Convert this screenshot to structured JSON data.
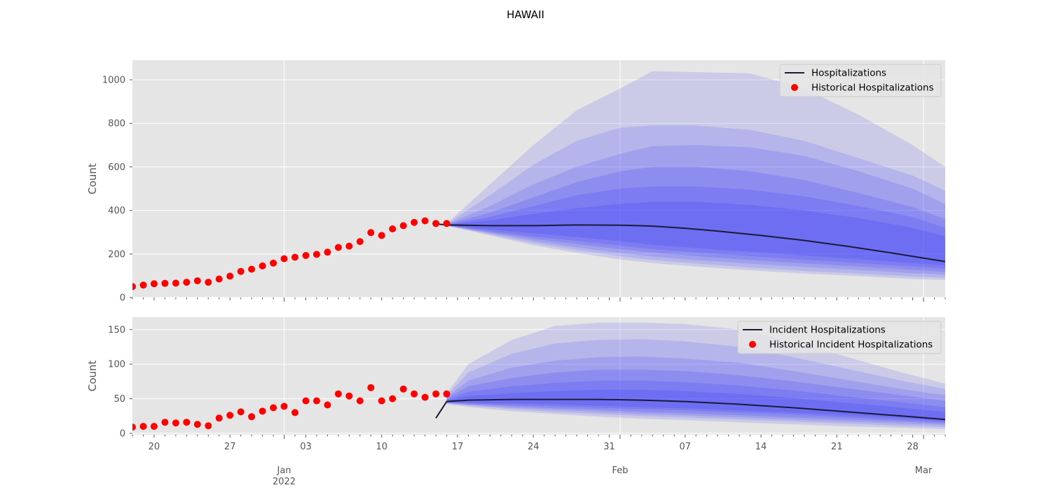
{
  "title": "HAWAII",
  "colors": {
    "panel_bg": "#e5e5e5",
    "grid": "#ffffff",
    "band": "#2222ff",
    "median": "#1a1a3a",
    "historical": "#ff0000",
    "tick": "#555555"
  },
  "x_axis": {
    "range": [
      "2021-12-18",
      "2022-03-03"
    ],
    "day_ticks": [
      {
        "date": "2021-12-20",
        "label": "20"
      },
      {
        "date": "2021-12-27",
        "label": "27"
      },
      {
        "date": "2022-01-03",
        "label": "03"
      },
      {
        "date": "2022-01-10",
        "label": "10"
      },
      {
        "date": "2022-01-17",
        "label": "17"
      },
      {
        "date": "2022-01-24",
        "label": "24"
      },
      {
        "date": "2022-01-31",
        "label": "31"
      },
      {
        "date": "2022-02-07",
        "label": "07"
      },
      {
        "date": "2022-02-14",
        "label": "14"
      },
      {
        "date": "2022-02-21",
        "label": "21"
      },
      {
        "date": "2022-02-28",
        "label": "28"
      }
    ],
    "month_ticks": [
      {
        "date": "2022-01-01",
        "label": "Jan",
        "sublabel": "2022"
      },
      {
        "date": "2022-02-01",
        "label": "Feb",
        "sublabel": ""
      },
      {
        "date": "2022-03-01",
        "label": "Mar",
        "sublabel": ""
      }
    ]
  },
  "chart_data": [
    {
      "type": "line",
      "panel": "top",
      "title": "",
      "xlabel": "",
      "ylabel": "Count",
      "ylim": [
        0,
        1090
      ],
      "yticks": [
        0,
        200,
        400,
        600,
        800,
        1000
      ],
      "grid": true,
      "legend": "top-right",
      "legend_entries": [
        {
          "kind": "line",
          "label": "Hospitalizations"
        },
        {
          "kind": "marker",
          "label": "Historical Hospitalizations"
        }
      ],
      "historical": {
        "name": "Historical Hospitalizations",
        "start_date": "2021-12-18",
        "values": [
          50,
          57,
          63,
          65,
          66,
          70,
          77,
          70,
          85,
          98,
          120,
          130,
          145,
          158,
          178,
          185,
          193,
          198,
          208,
          230,
          236,
          257,
          298,
          285,
          315,
          330,
          345,
          352,
          340,
          340
        ]
      },
      "median": {
        "name": "Hospitalizations",
        "x": [
          "2022-01-15",
          "2022-01-16",
          "2022-01-20",
          "2022-01-24",
          "2022-01-28",
          "2022-02-01",
          "2022-02-04",
          "2022-02-07",
          "2022-02-10",
          "2022-02-14",
          "2022-02-18",
          "2022-02-22",
          "2022-02-26",
          "2022-03-03"
        ],
        "values": [
          338,
          333,
          330,
          330,
          333,
          332,
          328,
          318,
          305,
          285,
          262,
          235,
          205,
          165
        ]
      },
      "bands_x": [
        "2022-01-16",
        "2022-01-20",
        "2022-01-24",
        "2022-01-28",
        "2022-02-01",
        "2022-02-04",
        "2022-02-08",
        "2022-02-13",
        "2022-02-18",
        "2022-02-23",
        "2022-02-28",
        "2022-03-03"
      ],
      "bands": [
        {
          "lower": [
            330,
            285,
            240,
            205,
            175,
            158,
            142,
            125,
            110,
            98,
            85,
            80
          ],
          "upper": [
            340,
            520,
            700,
            860,
            960,
            1040,
            1035,
            1030,
            960,
            840,
            700,
            600
          ]
        },
        {
          "lower": [
            330,
            290,
            250,
            218,
            190,
            172,
            156,
            138,
            122,
            110,
            96,
            90
          ],
          "upper": [
            338,
            470,
            610,
            720,
            780,
            790,
            790,
            770,
            720,
            640,
            560,
            490
          ]
        },
        {
          "lower": [
            331,
            295,
            260,
            230,
            205,
            188,
            172,
            155,
            140,
            126,
            112,
            105
          ],
          "upper": [
            337,
            420,
            520,
            600,
            660,
            695,
            700,
            690,
            650,
            580,
            500,
            430
          ]
        },
        {
          "lower": [
            331,
            300,
            270,
            245,
            222,
            206,
            190,
            172,
            157,
            142,
            127,
            118
          ],
          "upper": [
            336,
            390,
            460,
            530,
            580,
            600,
            600,
            580,
            540,
            480,
            415,
            360
          ]
        },
        {
          "lower": [
            332,
            305,
            280,
            260,
            238,
            222,
            207,
            190,
            174,
            158,
            142,
            132
          ],
          "upper": [
            335,
            370,
            420,
            470,
            500,
            510,
            510,
            495,
            465,
            420,
            370,
            320
          ]
        },
        {
          "lower": [
            332,
            312,
            295,
            278,
            258,
            242,
            227,
            210,
            193,
            176,
            158,
            147
          ],
          "upper": [
            334,
            355,
            385,
            410,
            430,
            440,
            440,
            425,
            400,
            365,
            320,
            280
          ]
        }
      ]
    },
    {
      "type": "line",
      "panel": "bottom",
      "title": "",
      "xlabel": "",
      "ylabel": "Count",
      "ylim": [
        -2,
        168
      ],
      "yticks": [
        0,
        50,
        100,
        150
      ],
      "grid": true,
      "legend": "top-right",
      "legend_entries": [
        {
          "kind": "line",
          "label": "Incident Hospitalizations"
        },
        {
          "kind": "marker",
          "label": "Historical Incident Hospitalizations"
        }
      ],
      "historical": {
        "name": "Historical Incident Hospitalizations",
        "start_date": "2021-12-18",
        "values": [
          9,
          10,
          10,
          16,
          15,
          16,
          13,
          11,
          22,
          26,
          31,
          24,
          32,
          37,
          39,
          30,
          47,
          47,
          41,
          57,
          54,
          47,
          66,
          47,
          50,
          64,
          57,
          52,
          57,
          57
        ]
      },
      "median": {
        "name": "Incident Hospitalizations",
        "x": [
          "2022-01-15",
          "2022-01-16",
          "2022-01-18",
          "2022-01-22",
          "2022-01-26",
          "2022-01-30",
          "2022-02-03",
          "2022-02-07",
          "2022-02-12",
          "2022-02-17",
          "2022-02-22",
          "2022-02-27",
          "2022-03-03"
        ],
        "values": [
          22,
          46,
          48,
          49,
          49,
          49,
          48,
          46,
          42,
          37,
          31,
          25,
          20
        ]
      },
      "bands_x": [
        "2022-01-16",
        "2022-01-18",
        "2022-01-22",
        "2022-01-26",
        "2022-01-30",
        "2022-02-03",
        "2022-02-07",
        "2022-02-12",
        "2022-02-17",
        "2022-02-22",
        "2022-02-27",
        "2022-03-03"
      ],
      "bands": [
        {
          "lower": [
            42,
            38,
            32,
            28,
            24,
            21,
            19,
            16,
            13,
            10,
            8,
            6
          ],
          "upper": [
            58,
            100,
            135,
            155,
            160,
            160,
            158,
            150,
            132,
            110,
            88,
            72
          ]
        },
        {
          "lower": [
            43,
            40,
            35,
            31,
            28,
            25,
            23,
            20,
            17,
            14,
            11,
            9
          ],
          "upper": [
            55,
            88,
            115,
            130,
            135,
            136,
            133,
            125,
            110,
            93,
            76,
            64
          ]
        },
        {
          "lower": [
            44,
            41,
            37,
            34,
            31,
            28,
            26,
            23,
            20,
            17,
            14,
            12
          ],
          "upper": [
            53,
            76,
            95,
            105,
            110,
            111,
            108,
            102,
            90,
            77,
            64,
            55
          ]
        },
        {
          "lower": [
            44,
            42,
            39,
            36,
            34,
            31,
            29,
            26,
            23,
            20,
            17,
            14
          ],
          "upper": [
            51,
            68,
            80,
            88,
            92,
            92,
            90,
            84,
            75,
            65,
            55,
            47
          ]
        },
        {
          "lower": [
            45,
            43,
            41,
            39,
            37,
            35,
            33,
            30,
            27,
            23,
            19,
            16
          ],
          "upper": [
            49,
            60,
            68,
            73,
            76,
            76,
            74,
            69,
            62,
            53,
            45,
            38
          ]
        },
        {
          "lower": [
            45,
            44,
            43,
            42,
            40,
            38,
            36,
            33,
            30,
            26,
            22,
            18
          ],
          "upper": [
            48,
            54,
            58,
            61,
            63,
            63,
            61,
            57,
            51,
            44,
            37,
            31
          ]
        }
      ]
    }
  ]
}
